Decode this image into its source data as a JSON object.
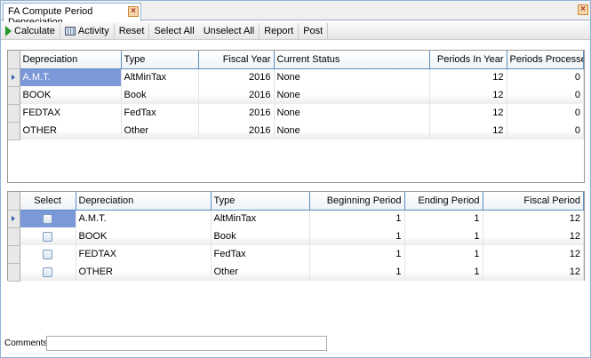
{
  "tab": {
    "title": "FA Compute Period Depreciation",
    "close_icon": "close-icon"
  },
  "toolbar": {
    "calculate": "Calculate",
    "activity": "Activity",
    "reset": "Reset",
    "select_all": "Select All",
    "unselect_all": "Unselect All",
    "report": "Report",
    "post": "Post"
  },
  "top_grid": {
    "columns": [
      "Depreciation",
      "Type",
      "Fiscal Year",
      "Current Status",
      "Periods In Year",
      "Periods Processed"
    ],
    "rows": [
      [
        "A.M.T.",
        "AltMinTax",
        "2016",
        "None",
        "12",
        "0"
      ],
      [
        "BOOK",
        "Book",
        "2016",
        "None",
        "12",
        "0"
      ],
      [
        "FEDTAX",
        "FedTax",
        "2016",
        "None",
        "12",
        "0"
      ],
      [
        "OTHER",
        "Other",
        "2016",
        "None",
        "12",
        "0"
      ]
    ]
  },
  "bottom_grid": {
    "columns": [
      "Select",
      "Depreciation",
      "Type",
      "Beginning Period",
      "Ending Period",
      "Fiscal Period"
    ],
    "rows": [
      [
        false,
        "A.M.T.",
        "AltMinTax",
        "1",
        "1",
        "12"
      ],
      [
        false,
        "BOOK",
        "Book",
        "1",
        "1",
        "12"
      ],
      [
        false,
        "FEDTAX",
        "FedTax",
        "1",
        "1",
        "12"
      ],
      [
        false,
        "OTHER",
        "Other",
        "1",
        "1",
        "12"
      ]
    ]
  },
  "comments": {
    "label": "Comments",
    "value": ""
  },
  "colors": {
    "selection": "#7b98d8",
    "header_border": "#5a8fc4",
    "calculate_icon": "#2a9a2a"
  }
}
